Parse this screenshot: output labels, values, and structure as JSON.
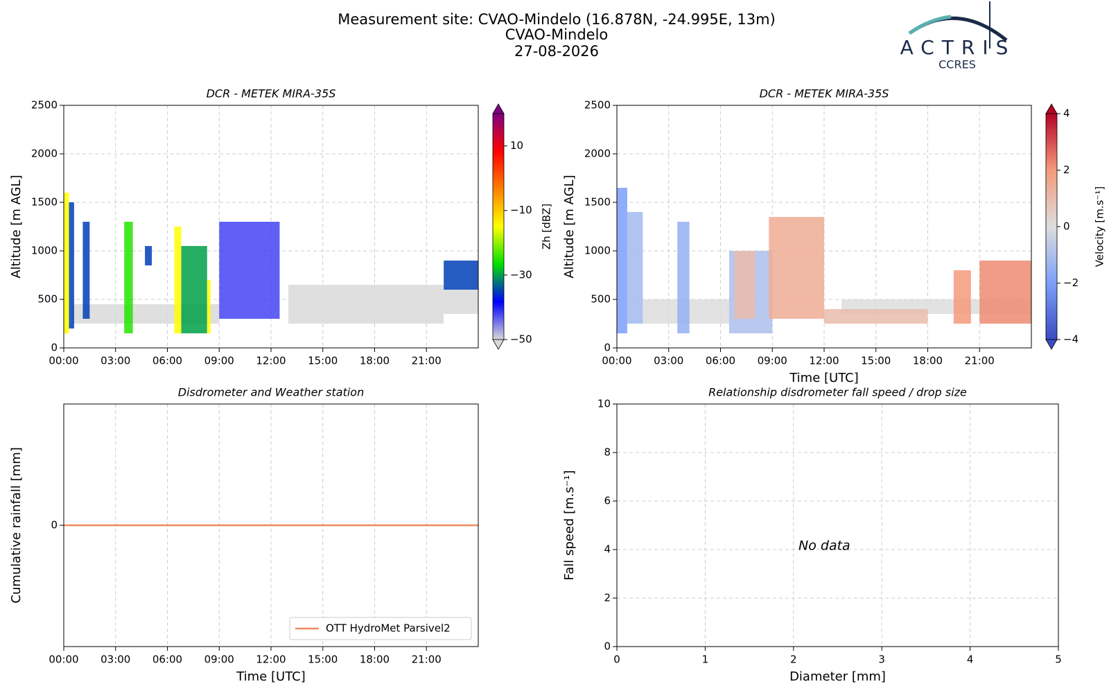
{
  "header": {
    "title": [
      "Measurement site: CVAO-Mindelo (16.878N, -24.995E, 13m)",
      "CVAO-Mindelo",
      "27-08-2026"
    ],
    "logo": "ACTRIS",
    "logo_sub": "CCRES"
  },
  "chart_data": [
    {
      "type": "heatmap",
      "title": "DCR - METEK MIRA-35S",
      "ylabel": "Altitude [m AGL]",
      "xlim": [
        0,
        24
      ],
      "xticks": [
        {
          "value": 0,
          "label": "00:00"
        },
        {
          "value": 3,
          "label": "03:00"
        },
        {
          "value": 6,
          "label": "06:00"
        },
        {
          "value": 9,
          "label": "09:00"
        },
        {
          "value": 12,
          "label": "12:00"
        },
        {
          "value": 15,
          "label": "15:00"
        },
        {
          "value": 18,
          "label": "18:00"
        },
        {
          "value": 21,
          "label": "21:00"
        }
      ],
      "ylim": [
        0,
        2500
      ],
      "yticks": [
        0,
        500,
        1000,
        1500,
        2000,
        2500
      ],
      "grid": true,
      "colorbar": {
        "label": "Zh [dBZ]",
        "clim": [
          -50,
          20
        ],
        "ticks": [
          {
            "value": -50,
            "label": "−50"
          },
          {
            "value": -30,
            "label": "−30"
          },
          {
            "value": -10,
            "label": "−10"
          },
          10
        ],
        "colors": [
          "#d9d9d9",
          "#0000ff",
          "#00e000",
          "#ffff00",
          "#ff8000",
          "#ff0000",
          "#800080"
        ]
      },
      "cells": [
        {
          "x0": 0.5,
          "x1": 9,
          "y0": 250,
          "y1": 450,
          "value": -50
        },
        {
          "x0": 13,
          "x1": 22,
          "y0": 250,
          "y1": 650,
          "value": -50
        },
        {
          "x0": 22,
          "x1": 24,
          "y0": 350,
          "y1": 600,
          "value": -50
        },
        {
          "x0": 0.3,
          "x1": 0.6,
          "y0": 200,
          "y1": 1500,
          "value": -35
        },
        {
          "x0": 0,
          "x1": 0.3,
          "y0": 150,
          "y1": 1600,
          "value": -15
        },
        {
          "x0": 1.1,
          "x1": 1.5,
          "y0": 300,
          "y1": 1300,
          "value": -35
        },
        {
          "x0": 3.5,
          "x1": 4,
          "y0": 150,
          "y1": 1300,
          "value": -25
        },
        {
          "x0": 4.7,
          "x1": 5.1,
          "y0": 850,
          "y1": 1050,
          "value": -35
        },
        {
          "x0": 6.8,
          "x1": 8.3,
          "y0": 150,
          "y1": 1050,
          "value": -30
        },
        {
          "x0": 6.4,
          "x1": 6.8,
          "y0": 150,
          "y1": 1250,
          "value": -15
        },
        {
          "x0": 8.3,
          "x1": 8.5,
          "y0": 150,
          "y1": 700,
          "value": -15
        },
        {
          "x0": 9,
          "x1": 12.5,
          "y0": 300,
          "y1": 1300,
          "value": -42
        },
        {
          "x0": 22,
          "x1": 24,
          "y0": 600,
          "y1": 900,
          "value": -35
        }
      ]
    },
    {
      "type": "heatmap",
      "title": "DCR - METEK MIRA-35S",
      "ylabel": "Altitude [m AGL]",
      "xlabel": "Time [UTC]",
      "xlim": [
        0,
        24
      ],
      "xticks": [
        {
          "value": 0,
          "label": "00:00"
        },
        {
          "value": 3,
          "label": "03:00"
        },
        {
          "value": 6,
          "label": "06:00"
        },
        {
          "value": 9,
          "label": "09:00"
        },
        {
          "value": 12,
          "label": "12:00"
        },
        {
          "value": 15,
          "label": "15:00"
        },
        {
          "value": 18,
          "label": "18:00"
        },
        {
          "value": 21,
          "label": "21:00"
        }
      ],
      "ylim": [
        0,
        2500
      ],
      "yticks": [
        0,
        500,
        1000,
        1500,
        2000,
        2500
      ],
      "grid": true,
      "colorbar": {
        "label": "Velocity [m.s⁻¹]",
        "clim": [
          -4,
          4
        ],
        "ticks": [
          {
            "value": -4,
            "label": "−4"
          },
          {
            "value": -2,
            "label": "−2"
          },
          0,
          2,
          4
        ],
        "colors": [
          "#3b4cc0",
          "#7b9ff9",
          "#dddddd",
          "#f49a7b",
          "#b40426"
        ]
      },
      "cells": [
        {
          "x0": 1.5,
          "x1": 6.5,
          "y0": 250,
          "y1": 500,
          "value": 0
        },
        {
          "x0": 13,
          "x1": 24,
          "y0": 350,
          "y1": 500,
          "value": 0
        },
        {
          "x0": 0,
          "x1": 0.6,
          "y0": 150,
          "y1": 1650,
          "value": -2
        },
        {
          "x0": 0.6,
          "x1": 1.5,
          "y0": 250,
          "y1": 1400,
          "value": -1.2
        },
        {
          "x0": 3.5,
          "x1": 4.2,
          "y0": 150,
          "y1": 1300,
          "value": -1.5
        },
        {
          "x0": 6.5,
          "x1": 9,
          "y0": 150,
          "y1": 1000,
          "value": -1
        },
        {
          "x0": 6.8,
          "x1": 8,
          "y0": 300,
          "y1": 1000,
          "value": 1
        },
        {
          "x0": 8.8,
          "x1": 12,
          "y0": 300,
          "y1": 1350,
          "value": 1.5
        },
        {
          "x0": 12,
          "x1": 18,
          "y0": 250,
          "y1": 400,
          "value": 1
        },
        {
          "x0": 19.5,
          "x1": 20.5,
          "y0": 250,
          "y1": 800,
          "value": 2
        },
        {
          "x0": 21,
          "x1": 24,
          "y0": 250,
          "y1": 900,
          "value": 2.2
        }
      ]
    },
    {
      "type": "line",
      "title": "Disdrometer and Weather station",
      "ylabel": "Cumulative rainfall [mm]",
      "xlabel": "Time [UTC]",
      "xlim": [
        0,
        24
      ],
      "xticks": [
        {
          "value": 0,
          "label": "00:00"
        },
        {
          "value": 3,
          "label": "03:00"
        },
        {
          "value": 6,
          "label": "06:00"
        },
        {
          "value": 9,
          "label": "09:00"
        },
        {
          "value": 12,
          "label": "12:00"
        },
        {
          "value": 15,
          "label": "15:00"
        },
        {
          "value": 18,
          "label": "18:00"
        },
        {
          "value": 21,
          "label": "21:00"
        }
      ],
      "ylim": [
        -1,
        1
      ],
      "yticks": [
        0
      ],
      "grid": true,
      "legend": "lower right",
      "x": [
        0,
        24
      ],
      "series": [
        {
          "name": "OTT HydroMet Parsivel2",
          "color": "#f08a5d",
          "values": [
            0,
            0
          ]
        }
      ]
    },
    {
      "type": "scatter",
      "title": "Relationship disdrometer fall speed / drop size",
      "ylabel": "Fall speed [m.s⁻¹]",
      "xlabel": "Diameter [mm]",
      "xlim": [
        0,
        5
      ],
      "xticks": [
        0,
        1,
        2,
        3,
        4,
        5
      ],
      "ylim": [
        0,
        10
      ],
      "yticks": [
        0,
        2,
        4,
        6,
        8,
        10
      ],
      "grid": true,
      "annotation": "No data"
    }
  ]
}
